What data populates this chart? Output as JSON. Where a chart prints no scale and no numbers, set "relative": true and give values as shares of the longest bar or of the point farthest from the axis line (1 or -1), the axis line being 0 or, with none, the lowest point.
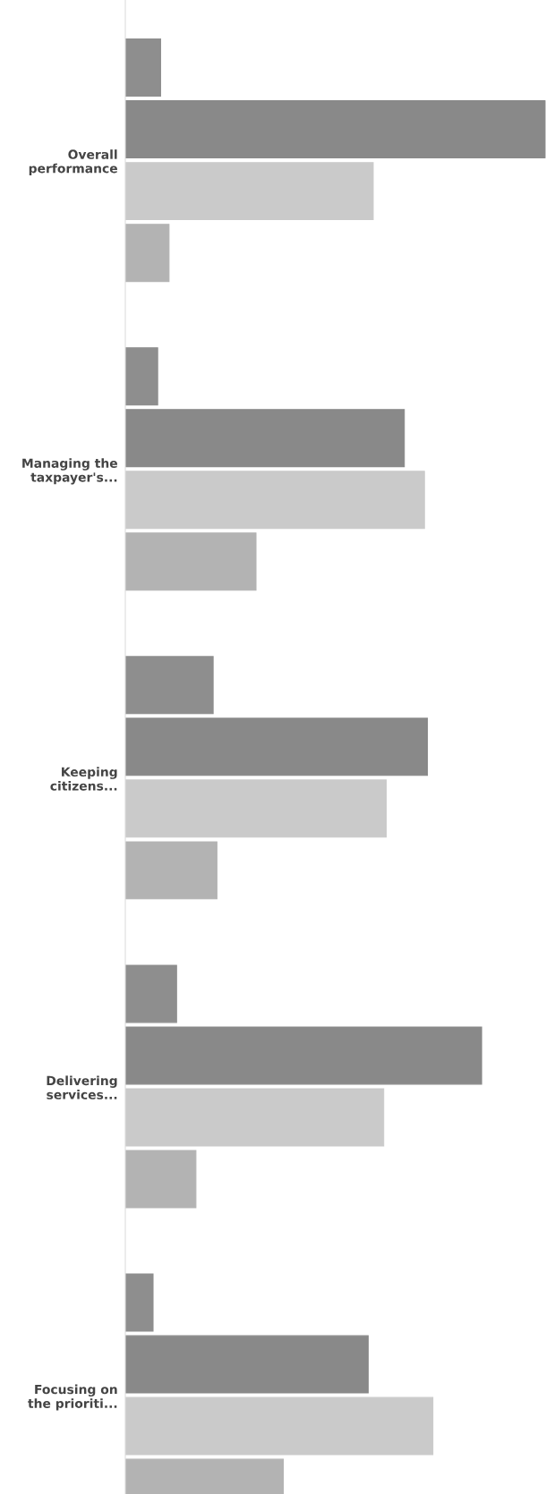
{
  "chart_data": {
    "type": "bar",
    "orientation": "horizontal",
    "relative": true,
    "categories": [
      "Overall\nperformance",
      "Managing the\ntaxpayer's...",
      "Keeping\ncitizens...",
      "Delivering\nservices...",
      "Focusing on\nthe prioriti..."
    ],
    "series": [
      {
        "color": "#8e8e8e",
        "values": [
          0.084,
          0.077,
          0.209,
          0.122,
          0.066
        ]
      },
      {
        "color": "#898989",
        "values": [
          1,
          0.664,
          0.719,
          0.848,
          0.578
        ]
      },
      {
        "color": "#cacaca",
        "values": [
          0.59,
          0.712,
          0.621,
          0.615,
          0.732
        ]
      },
      {
        "color": "#b3b3b3",
        "values": [
          0.104,
          0.311,
          0.218,
          0.168,
          0.376
        ]
      }
    ]
  }
}
